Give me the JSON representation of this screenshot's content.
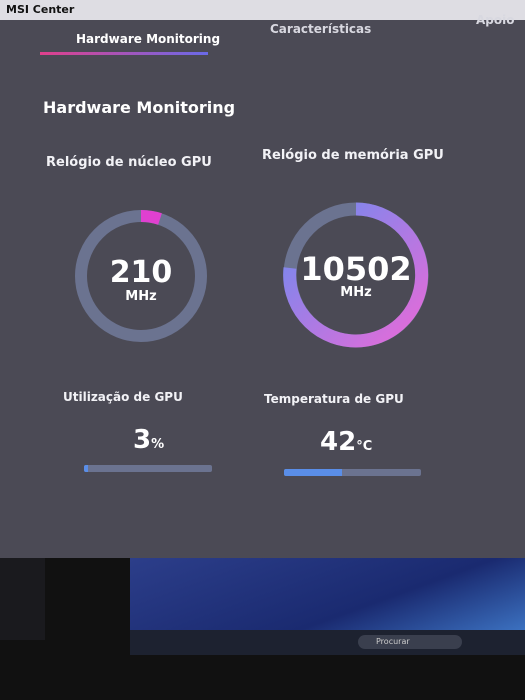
{
  "window": {
    "title": "MSI Center"
  },
  "tabs": [
    "Hardware Monitoring",
    "Características",
    "Apoio"
  ],
  "section": {
    "title": "Hardware Monitoring"
  },
  "gauges": [
    {
      "label": "Relógio de núcleo GPU",
      "value": 210,
      "unit": "MHz"
    },
    {
      "label": "Relógio de memória GPU",
      "value": 10502,
      "unit": "MHz"
    }
  ],
  "meters": [
    {
      "label": "Utilização de GPU",
      "value": 3,
      "unit": "%"
    },
    {
      "label": "Temperatura de GPU",
      "value": 42,
      "unit": "°C"
    }
  ],
  "taskbar": {
    "search": "Procurar"
  }
}
